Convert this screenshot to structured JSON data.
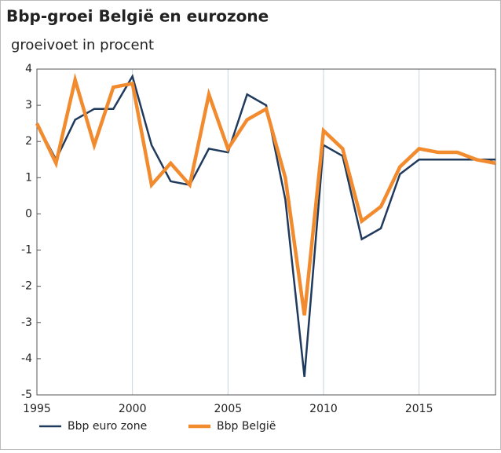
{
  "chart_data": {
    "type": "line",
    "title": "Bbp-groei België en eurozone",
    "subtitle": "groeivoet in procent",
    "x": [
      1995,
      1996,
      1997,
      1998,
      1999,
      2000,
      2001,
      2002,
      2003,
      2004,
      2005,
      2006,
      2007,
      2008,
      2009,
      2010,
      2011,
      2012,
      2013,
      2014,
      2015,
      2016,
      2017,
      2018,
      2019
    ],
    "series": [
      {
        "name": "Bbp euro zone",
        "color": "#1f3a5c",
        "width": 2.5,
        "values": [
          2.5,
          1.5,
          2.6,
          2.9,
          2.9,
          3.8,
          1.9,
          0.9,
          0.8,
          1.8,
          1.7,
          3.3,
          3.0,
          0.4,
          -4.5,
          1.9,
          1.6,
          -0.7,
          -0.4,
          1.1,
          1.5,
          1.5,
          1.5,
          1.5,
          1.5
        ]
      },
      {
        "name": "Bbp België",
        "color": "#f28a2e",
        "width": 4.5,
        "values": [
          2.5,
          1.4,
          3.7,
          1.9,
          3.5,
          3.6,
          0.8,
          1.4,
          0.8,
          3.3,
          1.8,
          2.6,
          2.9,
          1.0,
          -2.8,
          2.3,
          1.8,
          -0.2,
          0.2,
          1.3,
          1.8,
          1.7,
          1.7,
          1.5,
          1.4
        ]
      }
    ],
    "xlim": [
      1995,
      2019
    ],
    "xticks": [
      1995,
      2000,
      2005,
      2010,
      2015
    ],
    "ylim": [
      -5,
      4
    ],
    "yticks": [
      4,
      3,
      2,
      1,
      0,
      -1,
      -2,
      -3,
      -4,
      -5
    ],
    "grid": "x",
    "legend": "bottom"
  }
}
